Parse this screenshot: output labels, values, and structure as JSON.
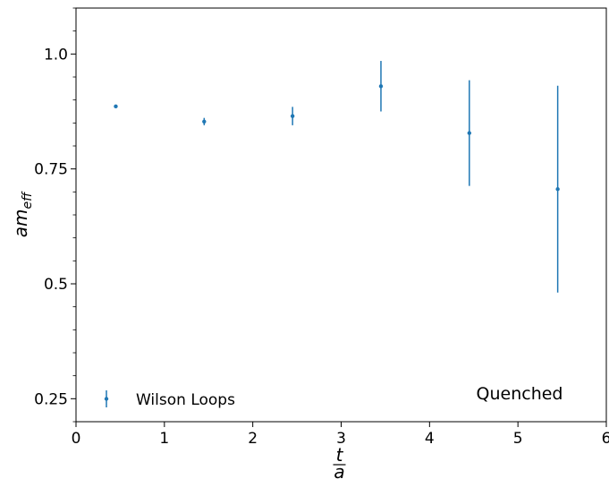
{
  "chart_data": {
    "type": "scatter",
    "title": "",
    "xlabel_numerator": "t",
    "xlabel_denominator": "a",
    "ylabel": "am",
    "ylabel_subscript": "eff",
    "xlim": [
      0,
      6
    ],
    "ylim": [
      0.2,
      1.1
    ],
    "xticks": [
      0,
      1,
      2,
      3,
      4,
      5,
      6
    ],
    "xtick_labels": [
      "0",
      "1",
      "2",
      "3",
      "4",
      "5",
      "6"
    ],
    "yticks": [
      0.25,
      0.5,
      0.75,
      1.0
    ],
    "ytick_labels": [
      "0.25",
      "0.5",
      "0.75",
      "1.0"
    ],
    "grid": false,
    "legend_position": "lower-left",
    "series": [
      {
        "name": "Wilson Loops",
        "color": "#1f77b4",
        "x": [
          0.45,
          1.45,
          2.45,
          3.45,
          4.45,
          5.45
        ],
        "y": [
          0.886,
          0.853,
          0.865,
          0.93,
          0.828,
          0.706
        ],
        "yerr": [
          0.002,
          0.008,
          0.02,
          0.055,
          0.115,
          0.225
        ]
      }
    ],
    "annotations": [
      {
        "text": "Quenched",
        "position": "lower-right"
      }
    ]
  }
}
